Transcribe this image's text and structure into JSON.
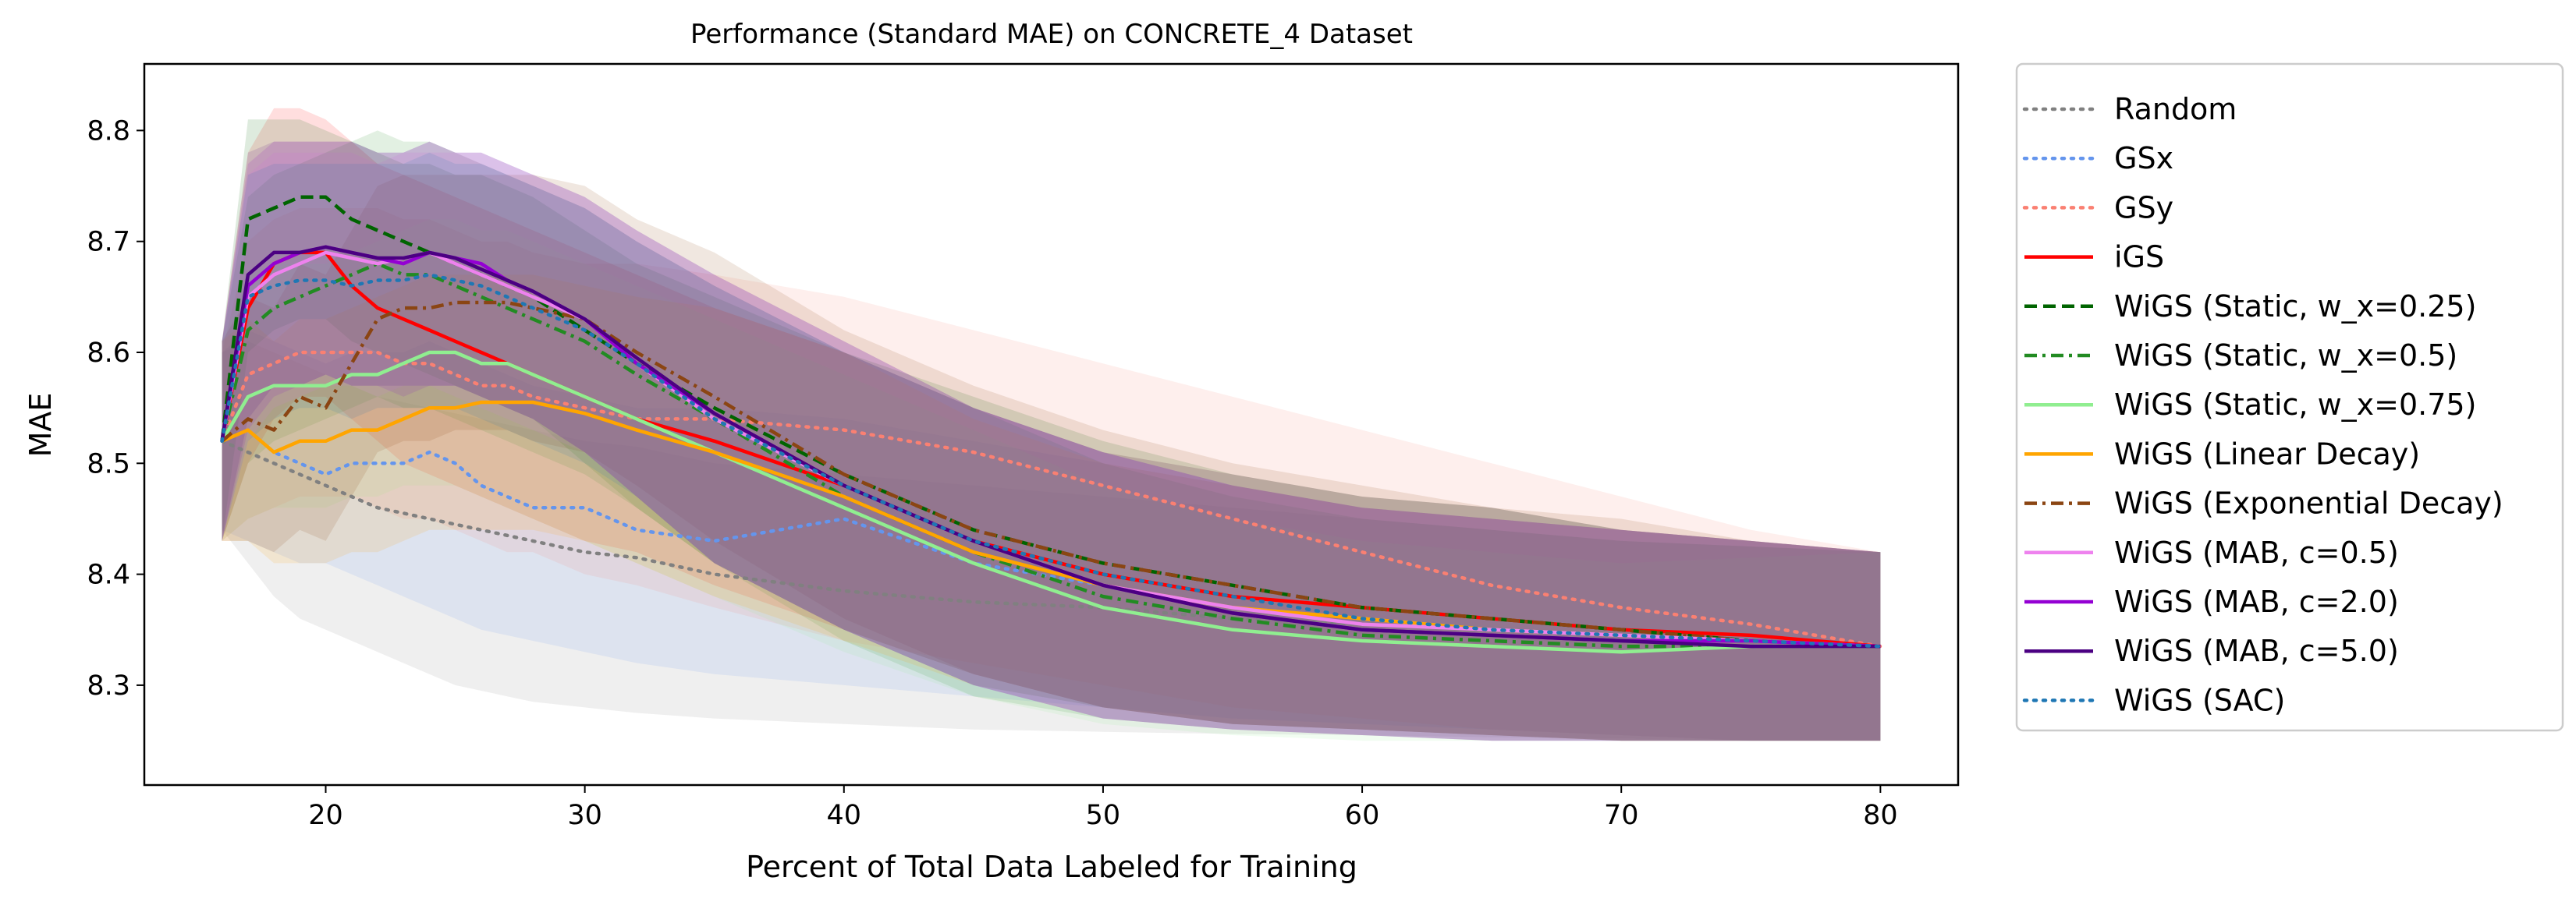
{
  "chart_data": {
    "type": "line",
    "title": "Performance (Standard MAE) on CONCRETE_4 Dataset",
    "xlabel": "Percent of Total Data Labeled for Training",
    "ylabel": "MAE",
    "xlim": [
      13,
      83
    ],
    "ylim": [
      8.21,
      8.86
    ],
    "xticks": [
      20,
      30,
      40,
      50,
      60,
      70,
      80
    ],
    "yticks": [
      8.3,
      8.4,
      8.5,
      8.6,
      8.7,
      8.8
    ],
    "grid": false,
    "legend_position": "outside-right",
    "x": [
      16,
      17,
      18,
      19,
      20,
      21,
      22,
      23,
      24,
      25,
      26,
      27,
      28,
      30,
      32,
      35,
      40,
      45,
      50,
      55,
      60,
      65,
      70,
      75,
      80
    ],
    "series": [
      {
        "name": "Random",
        "color": "#808080",
        "style": "dotted",
        "values": [
          8.52,
          8.51,
          8.5,
          8.49,
          8.48,
          8.47,
          8.46,
          8.455,
          8.45,
          8.445,
          8.44,
          8.435,
          8.43,
          8.42,
          8.415,
          8.4,
          8.385,
          8.375,
          8.37,
          8.36,
          8.355,
          8.35,
          8.345,
          8.34,
          8.335
        ],
        "band_low": [
          8.44,
          8.41,
          8.38,
          8.36,
          8.35,
          8.34,
          8.33,
          8.32,
          8.31,
          8.3,
          8.295,
          8.29,
          8.285,
          8.28,
          8.275,
          8.27,
          8.265,
          8.26,
          8.258,
          8.256,
          8.255,
          8.253,
          8.252,
          8.25,
          8.25
        ],
        "band_high": [
          8.6,
          8.61,
          8.6,
          8.59,
          8.58,
          8.57,
          8.56,
          8.555,
          8.55,
          8.545,
          8.54,
          8.535,
          8.53,
          8.52,
          8.515,
          8.5,
          8.49,
          8.48,
          8.47,
          8.46,
          8.45,
          8.44,
          8.43,
          8.425,
          8.42
        ]
      },
      {
        "name": "GSx",
        "color": "#6495ed",
        "style": "dotted",
        "values": [
          8.52,
          8.53,
          8.51,
          8.5,
          8.49,
          8.5,
          8.5,
          8.5,
          8.51,
          8.5,
          8.48,
          8.47,
          8.46,
          8.46,
          8.44,
          8.43,
          8.45,
          8.41,
          8.39,
          8.37,
          8.36,
          8.35,
          8.345,
          8.34,
          8.335
        ],
        "band_low": [
          8.44,
          8.43,
          8.42,
          8.41,
          8.41,
          8.4,
          8.39,
          8.38,
          8.37,
          8.36,
          8.35,
          8.345,
          8.34,
          8.33,
          8.32,
          8.31,
          8.3,
          8.29,
          8.28,
          8.27,
          8.265,
          8.26,
          8.255,
          8.25,
          8.25
        ],
        "band_high": [
          8.6,
          8.62,
          8.61,
          8.6,
          8.59,
          8.6,
          8.6,
          8.6,
          8.61,
          8.6,
          8.59,
          8.58,
          8.57,
          8.56,
          8.55,
          8.55,
          8.54,
          8.52,
          8.5,
          8.48,
          8.46,
          8.45,
          8.44,
          8.43,
          8.42
        ]
      },
      {
        "name": "GSy",
        "color": "#fa8072",
        "style": "dotted",
        "values": [
          8.52,
          8.58,
          8.59,
          8.6,
          8.6,
          8.6,
          8.6,
          8.59,
          8.59,
          8.58,
          8.57,
          8.57,
          8.56,
          8.55,
          8.54,
          8.54,
          8.53,
          8.51,
          8.48,
          8.45,
          8.42,
          8.39,
          8.37,
          8.355,
          8.335
        ],
        "band_low": [
          8.43,
          8.45,
          8.46,
          8.47,
          8.47,
          8.47,
          8.46,
          8.45,
          8.45,
          8.44,
          8.43,
          8.42,
          8.42,
          8.4,
          8.39,
          8.37,
          8.34,
          8.32,
          8.3,
          8.28,
          8.27,
          8.26,
          8.255,
          8.25,
          8.25
        ],
        "band_high": [
          8.6,
          8.7,
          8.72,
          8.73,
          8.73,
          8.73,
          8.73,
          8.72,
          8.72,
          8.71,
          8.7,
          8.7,
          8.69,
          8.68,
          8.68,
          8.67,
          8.65,
          8.62,
          8.59,
          8.56,
          8.53,
          8.5,
          8.47,
          8.44,
          8.42
        ]
      },
      {
        "name": "iGS",
        "color": "#ff0000",
        "style": "solid",
        "values": [
          8.52,
          8.64,
          8.68,
          8.69,
          8.69,
          8.66,
          8.64,
          8.63,
          8.62,
          8.61,
          8.6,
          8.59,
          8.58,
          8.56,
          8.54,
          8.52,
          8.48,
          8.43,
          8.4,
          8.38,
          8.37,
          8.36,
          8.35,
          8.345,
          8.335
        ],
        "band_low": [
          8.43,
          8.5,
          8.54,
          8.56,
          8.56,
          8.54,
          8.52,
          8.5,
          8.49,
          8.48,
          8.47,
          8.46,
          8.45,
          8.43,
          8.42,
          8.39,
          8.35,
          8.31,
          8.28,
          8.265,
          8.26,
          8.255,
          8.25,
          8.25,
          8.25
        ],
        "band_high": [
          8.61,
          8.78,
          8.82,
          8.82,
          8.81,
          8.79,
          8.77,
          8.76,
          8.75,
          8.74,
          8.73,
          8.72,
          8.71,
          8.69,
          8.67,
          8.64,
          8.6,
          8.55,
          8.51,
          8.49,
          8.47,
          8.46,
          8.44,
          8.43,
          8.42
        ]
      },
      {
        "name": "WiGS (Static, w_x=0.25)",
        "color": "#006400",
        "style": "dashed",
        "values": [
          8.52,
          8.72,
          8.73,
          8.74,
          8.74,
          8.72,
          8.71,
          8.7,
          8.69,
          8.68,
          8.67,
          8.66,
          8.65,
          8.62,
          8.59,
          8.55,
          8.49,
          8.44,
          8.41,
          8.39,
          8.37,
          8.36,
          8.35,
          8.34,
          8.335
        ],
        "band_low": [
          8.43,
          8.6,
          8.62,
          8.63,
          8.63,
          8.61,
          8.6,
          8.59,
          8.58,
          8.57,
          8.56,
          8.55,
          8.54,
          8.5,
          8.46,
          8.41,
          8.35,
          8.31,
          8.28,
          8.265,
          8.26,
          8.255,
          8.25,
          8.25,
          8.25
        ],
        "band_high": [
          8.61,
          8.81,
          8.81,
          8.81,
          8.8,
          8.79,
          8.78,
          8.77,
          8.77,
          8.76,
          8.76,
          8.75,
          8.74,
          8.71,
          8.68,
          8.65,
          8.6,
          8.56,
          8.52,
          8.49,
          8.47,
          8.46,
          8.44,
          8.43,
          8.42
        ]
      },
      {
        "name": "WiGS (Static, w_x=0.5)",
        "color": "#228b22",
        "style": "dashdot",
        "values": [
          8.52,
          8.62,
          8.64,
          8.65,
          8.66,
          8.67,
          8.68,
          8.67,
          8.67,
          8.66,
          8.65,
          8.64,
          8.63,
          8.61,
          8.58,
          8.54,
          8.47,
          8.42,
          8.38,
          8.36,
          8.345,
          8.34,
          8.335,
          8.335,
          8.335
        ],
        "band_low": [
          8.43,
          8.5,
          8.52,
          8.53,
          8.54,
          8.55,
          8.56,
          8.55,
          8.55,
          8.54,
          8.53,
          8.52,
          8.51,
          8.49,
          8.46,
          8.41,
          8.34,
          8.29,
          8.27,
          8.26,
          8.255,
          8.25,
          8.25,
          8.25,
          8.25
        ],
        "band_high": [
          8.61,
          8.74,
          8.76,
          8.77,
          8.78,
          8.79,
          8.8,
          8.79,
          8.79,
          8.78,
          8.77,
          8.76,
          8.75,
          8.73,
          8.7,
          8.66,
          8.6,
          8.55,
          8.5,
          8.47,
          8.45,
          8.44,
          8.43,
          8.425,
          8.42
        ]
      },
      {
        "name": "WiGS (Static, w_x=0.75)",
        "color": "#90ee90",
        "style": "solid",
        "values": [
          8.52,
          8.56,
          8.57,
          8.57,
          8.57,
          8.58,
          8.58,
          8.59,
          8.6,
          8.6,
          8.59,
          8.59,
          8.58,
          8.56,
          8.54,
          8.51,
          8.46,
          8.41,
          8.37,
          8.35,
          8.34,
          8.335,
          8.33,
          8.335,
          8.335
        ],
        "band_low": [
          8.43,
          8.45,
          8.46,
          8.46,
          8.46,
          8.47,
          8.47,
          8.48,
          8.48,
          8.48,
          8.47,
          8.46,
          8.45,
          8.43,
          8.41,
          8.38,
          8.33,
          8.29,
          8.265,
          8.255,
          8.25,
          8.25,
          8.25,
          8.25,
          8.25
        ],
        "band_high": [
          8.61,
          8.67,
          8.68,
          8.68,
          8.68,
          8.69,
          8.7,
          8.71,
          8.72,
          8.72,
          8.71,
          8.71,
          8.7,
          8.68,
          8.66,
          8.63,
          8.58,
          8.53,
          8.48,
          8.45,
          8.43,
          8.42,
          8.41,
          8.415,
          8.42
        ]
      },
      {
        "name": "WiGS (Linear Decay)",
        "color": "#ffa500",
        "style": "solid",
        "values": [
          8.52,
          8.53,
          8.51,
          8.52,
          8.52,
          8.53,
          8.53,
          8.54,
          8.55,
          8.55,
          8.555,
          8.555,
          8.555,
          8.545,
          8.53,
          8.51,
          8.47,
          8.42,
          8.39,
          8.37,
          8.36,
          8.35,
          8.345,
          8.34,
          8.335
        ],
        "band_low": [
          8.43,
          8.43,
          8.41,
          8.41,
          8.41,
          8.42,
          8.42,
          8.43,
          8.44,
          8.44,
          8.44,
          8.44,
          8.44,
          8.43,
          8.41,
          8.38,
          8.34,
          8.3,
          8.28,
          8.265,
          8.26,
          8.255,
          8.25,
          8.25,
          8.25
        ],
        "band_high": [
          8.61,
          8.63,
          8.61,
          8.63,
          8.63,
          8.64,
          8.65,
          8.66,
          8.67,
          8.67,
          8.67,
          8.67,
          8.67,
          8.66,
          8.65,
          8.64,
          8.6,
          8.54,
          8.5,
          8.48,
          8.46,
          8.45,
          8.44,
          8.43,
          8.42
        ]
      },
      {
        "name": "WiGS (Exponential Decay)",
        "color": "#8b4513",
        "style": "dashdot",
        "values": [
          8.52,
          8.54,
          8.53,
          8.56,
          8.55,
          8.59,
          8.63,
          8.64,
          8.64,
          8.645,
          8.645,
          8.645,
          8.64,
          8.63,
          8.6,
          8.56,
          8.49,
          8.44,
          8.41,
          8.39,
          8.37,
          8.36,
          8.35,
          8.34,
          8.335
        ],
        "band_low": [
          8.43,
          8.43,
          8.42,
          8.44,
          8.43,
          8.47,
          8.51,
          8.52,
          8.52,
          8.53,
          8.53,
          8.53,
          8.52,
          8.51,
          8.48,
          8.43,
          8.36,
          8.31,
          8.28,
          8.265,
          8.26,
          8.255,
          8.25,
          8.25,
          8.25
        ],
        "band_high": [
          8.61,
          8.65,
          8.64,
          8.68,
          8.67,
          8.71,
          8.75,
          8.76,
          8.76,
          8.76,
          8.76,
          8.76,
          8.76,
          8.75,
          8.72,
          8.69,
          8.62,
          8.57,
          8.53,
          8.5,
          8.48,
          8.46,
          8.45,
          8.43,
          8.42
        ]
      },
      {
        "name": "WiGS (MAB, c=0.5)",
        "color": "#ee82ee",
        "style": "solid",
        "values": [
          8.52,
          8.65,
          8.67,
          8.68,
          8.69,
          8.685,
          8.68,
          8.685,
          8.69,
          8.68,
          8.67,
          8.66,
          8.65,
          8.63,
          8.59,
          8.54,
          8.48,
          8.43,
          8.39,
          8.37,
          8.355,
          8.35,
          8.345,
          8.34,
          8.335
        ],
        "band_low": [
          8.43,
          8.52,
          8.55,
          8.56,
          8.57,
          8.57,
          8.56,
          8.57,
          8.57,
          8.56,
          8.55,
          8.54,
          8.53,
          8.51,
          8.47,
          8.41,
          8.35,
          8.3,
          8.27,
          8.26,
          8.255,
          8.25,
          8.25,
          8.25,
          8.25
        ],
        "band_high": [
          8.61,
          8.76,
          8.78,
          8.78,
          8.78,
          8.78,
          8.77,
          8.78,
          8.78,
          8.78,
          8.77,
          8.76,
          8.75,
          8.73,
          8.7,
          8.66,
          8.6,
          8.55,
          8.51,
          8.48,
          8.46,
          8.45,
          8.44,
          8.43,
          8.42
        ]
      },
      {
        "name": "WiGS (MAB, c=2.0)",
        "color": "#9400d3",
        "style": "solid",
        "values": [
          8.52,
          8.66,
          8.68,
          8.69,
          8.695,
          8.69,
          8.685,
          8.68,
          8.69,
          8.685,
          8.68,
          8.665,
          8.655,
          8.63,
          8.59,
          8.545,
          8.48,
          8.43,
          8.39,
          8.365,
          8.35,
          8.345,
          8.34,
          8.34,
          8.335
        ],
        "band_low": [
          8.43,
          8.53,
          8.56,
          8.57,
          8.58,
          8.57,
          8.57,
          8.56,
          8.57,
          8.57,
          8.56,
          8.55,
          8.54,
          8.51,
          8.47,
          8.41,
          8.35,
          8.3,
          8.27,
          8.26,
          8.255,
          8.25,
          8.25,
          8.25,
          8.25
        ],
        "band_high": [
          8.61,
          8.77,
          8.79,
          8.79,
          8.79,
          8.79,
          8.78,
          8.78,
          8.79,
          8.78,
          8.78,
          8.77,
          8.76,
          8.74,
          8.71,
          8.67,
          8.61,
          8.55,
          8.51,
          8.48,
          8.46,
          8.45,
          8.44,
          8.43,
          8.42
        ]
      },
      {
        "name": "WiGS (MAB, c=5.0)",
        "color": "#4b0082",
        "style": "solid",
        "values": [
          8.52,
          8.67,
          8.69,
          8.69,
          8.695,
          8.69,
          8.685,
          8.685,
          8.69,
          8.685,
          8.675,
          8.665,
          8.655,
          8.63,
          8.595,
          8.545,
          8.48,
          8.43,
          8.39,
          8.365,
          8.35,
          8.345,
          8.34,
          8.335,
          8.335
        ],
        "band_low": [
          8.43,
          8.54,
          8.57,
          8.57,
          8.58,
          8.57,
          8.57,
          8.57,
          8.57,
          8.57,
          8.56,
          8.55,
          8.54,
          8.51,
          8.47,
          8.41,
          8.35,
          8.3,
          8.27,
          8.26,
          8.255,
          8.25,
          8.25,
          8.25,
          8.25
        ],
        "band_high": [
          8.61,
          8.78,
          8.79,
          8.79,
          8.79,
          8.79,
          8.78,
          8.78,
          8.79,
          8.78,
          8.78,
          8.77,
          8.76,
          8.74,
          8.71,
          8.67,
          8.61,
          8.55,
          8.51,
          8.48,
          8.46,
          8.45,
          8.44,
          8.43,
          8.42
        ]
      },
      {
        "name": "WiGS (SAC)",
        "color": "#1f77b4",
        "style": "dotted",
        "values": [
          8.52,
          8.65,
          8.66,
          8.665,
          8.665,
          8.66,
          8.665,
          8.665,
          8.67,
          8.665,
          8.66,
          8.65,
          8.64,
          8.62,
          8.59,
          8.54,
          8.48,
          8.43,
          8.4,
          8.38,
          8.36,
          8.35,
          8.345,
          8.34,
          8.335
        ],
        "band_low": [
          8.43,
          8.52,
          8.54,
          8.55,
          8.55,
          8.54,
          8.55,
          8.55,
          8.55,
          8.55,
          8.54,
          8.53,
          8.52,
          8.5,
          8.47,
          8.41,
          8.35,
          8.3,
          8.28,
          8.265,
          8.26,
          8.255,
          8.25,
          8.25,
          8.25
        ],
        "band_high": [
          8.61,
          8.76,
          8.77,
          8.77,
          8.77,
          8.77,
          8.77,
          8.77,
          8.78,
          8.77,
          8.77,
          8.76,
          8.75,
          8.73,
          8.7,
          8.66,
          8.6,
          8.55,
          8.51,
          8.49,
          8.47,
          8.46,
          8.44,
          8.43,
          8.42
        ]
      }
    ]
  }
}
